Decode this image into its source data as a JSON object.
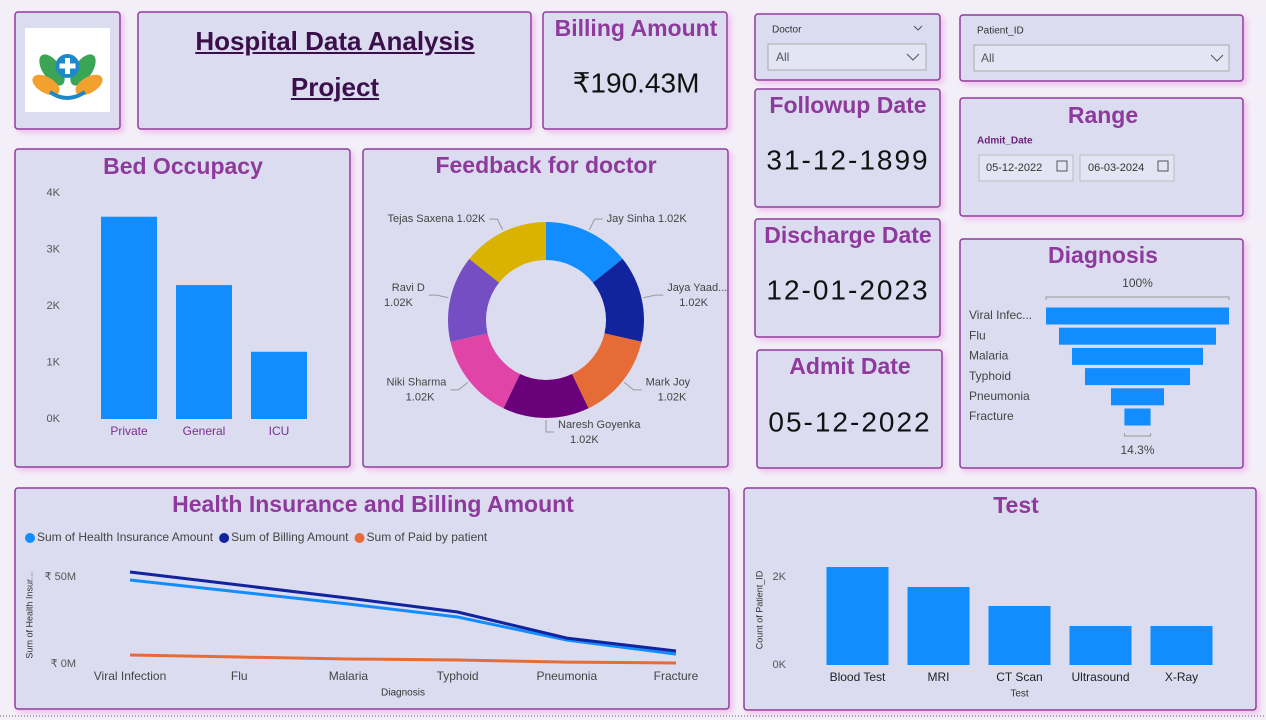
{
  "header": {
    "title": "Hospital Data Analysis Project"
  },
  "cards": [
    {
      "label": "Billing Amount",
      "value": "₹190.43M"
    },
    {
      "label": "Followup Date",
      "value": "31-12-1899"
    },
    {
      "label": "Discharge Date",
      "value": "12-01-2023"
    },
    {
      "label": "Admit Date",
      "value": "05-12-2022"
    }
  ],
  "slicers": [
    {
      "label": "Doctor",
      "value": "All"
    },
    {
      "label": "Patient_ID",
      "value": "All"
    }
  ],
  "range": {
    "title": "Range",
    "field": "Admit_Date",
    "start": "05-12-2022",
    "end": "06-03-2024"
  },
  "chart_data": [
    {
      "type": "bar",
      "title": "Bed Occupacy",
      "categories": [
        "Private",
        "General",
        "ICU"
      ],
      "values": [
        3580,
        2370,
        1190
      ],
      "color": "#118dff",
      "ylim": [
        0,
        4000
      ],
      "yticks": [
        {
          "value": 0,
          "label": "0K"
        },
        {
          "value": 1000,
          "label": "1K"
        },
        {
          "value": 2000,
          "label": "2K"
        },
        {
          "value": 3000,
          "label": "3K"
        },
        {
          "value": 4000,
          "label": "4K"
        }
      ],
      "grid": false
    },
    {
      "type": "pie",
      "title": "Feedback for doctor",
      "categories": [
        "Jay Sinha",
        "Jaya Yaad...",
        "Mark Joy",
        "Naresh Goyenka",
        "Niki Sharma",
        "Ravi D",
        "Tejas Saxena"
      ],
      "values": [
        1020,
        1020,
        1020,
        1020,
        1020,
        1020,
        1020
      ],
      "value_labels": [
        "1.02K",
        "1.02K",
        "1.02K",
        "1.02K",
        "1.02K",
        "1.02K",
        "1.02K"
      ],
      "colors": [
        "#118dff",
        "#12239e",
        "#e66c37",
        "#6b007b",
        "#e044a7",
        "#744ec2",
        "#d9b300"
      ]
    },
    {
      "type": "funnel",
      "title": "Diagnosis",
      "categories": [
        "Viral Infec...",
        "Flu",
        "Malaria",
        "Typhoid",
        "Pneumonia",
        "Fracture"
      ],
      "values": [
        100,
        85.8,
        71.6,
        57.4,
        29,
        14.3
      ],
      "value_labels": [
        "100%",
        null,
        null,
        null,
        null,
        "14.3%"
      ],
      "color": "#118dff"
    },
    {
      "type": "line",
      "title": "Health Insurance and Billing Amount",
      "categories": [
        "Viral Infection",
        "Flu",
        "Malaria",
        "Typhoid",
        "Pneumonia",
        "Fracture"
      ],
      "series": [
        {
          "name": "Sum of Health Insurance Amount",
          "color": "#118dff",
          "values": [
            48.3,
            41.4,
            34.5,
            27.0,
            13.8,
            5.7
          ]
        },
        {
          "name": "Sum of Billing Amount",
          "color": "#12239e",
          "values": [
            52.9,
            45.4,
            37.9,
            29.9,
            14.9,
            7.5
          ]
        },
        {
          "name": "Sum of Paid by patient",
          "color": "#e66c37",
          "values": [
            5.2,
            4.0,
            2.9,
            2.3,
            1.1,
            0.6
          ]
        }
      ],
      "ylim": [
        0,
        56
      ],
      "yticks": [
        {
          "value": 0,
          "label": "₹ 0M"
        },
        {
          "value": 50,
          "label": "₹ 50M"
        }
      ],
      "ylabel": "Sum of Health Insur...",
      "xlabel": "Diagnosis",
      "grid": false
    },
    {
      "type": "bar",
      "title": "Test",
      "categories": [
        "Blood Test",
        "MRI",
        "CT Scan",
        "Ultrasound",
        "X-Ray"
      ],
      "values": [
        2227,
        1773,
        1341,
        886,
        886
      ],
      "color": "#118dff",
      "ylim": [
        0,
        2500
      ],
      "yticks": [
        {
          "value": 0,
          "label": "0K"
        },
        {
          "value": 2000,
          "label": "2K"
        }
      ],
      "ylabel": "Count of Patient_ID",
      "xlabel": "Test",
      "grid": false
    }
  ]
}
